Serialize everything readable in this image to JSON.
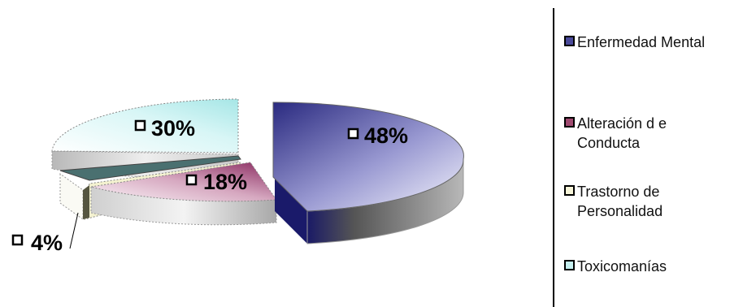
{
  "chart_data": {
    "type": "pie",
    "style": "3d-exploded",
    "title": "",
    "legend_position": "right",
    "slices": [
      {
        "name": "Enfermedad Mental",
        "value": 48,
        "label": "48%",
        "color": "#3a3a8c"
      },
      {
        "name": "Alteración de Conducta",
        "value": 18,
        "label": "18%",
        "color": "#a84a78"
      },
      {
        "name": "Trastorno de Personalidad",
        "value": 4,
        "label": "4%",
        "color": "#f4f2d0"
      },
      {
        "name": "Toxicomanías",
        "value": 30,
        "label": "30%",
        "color": "#bfeeee"
      }
    ]
  },
  "legend": {
    "items": [
      {
        "line1": "Enfermedad Mental",
        "line2": "",
        "swatch": "#4a4a9a"
      },
      {
        "line1": "Alteración d e",
        "line2": "Conducta",
        "swatch": "#a04a70"
      },
      {
        "line1": "Trastorno de",
        "line2": "Personalidad",
        "swatch": "#f6f4d8"
      },
      {
        "line1": "Toxicomanías",
        "line2": "",
        "swatch": "#c6f0f0"
      }
    ]
  }
}
